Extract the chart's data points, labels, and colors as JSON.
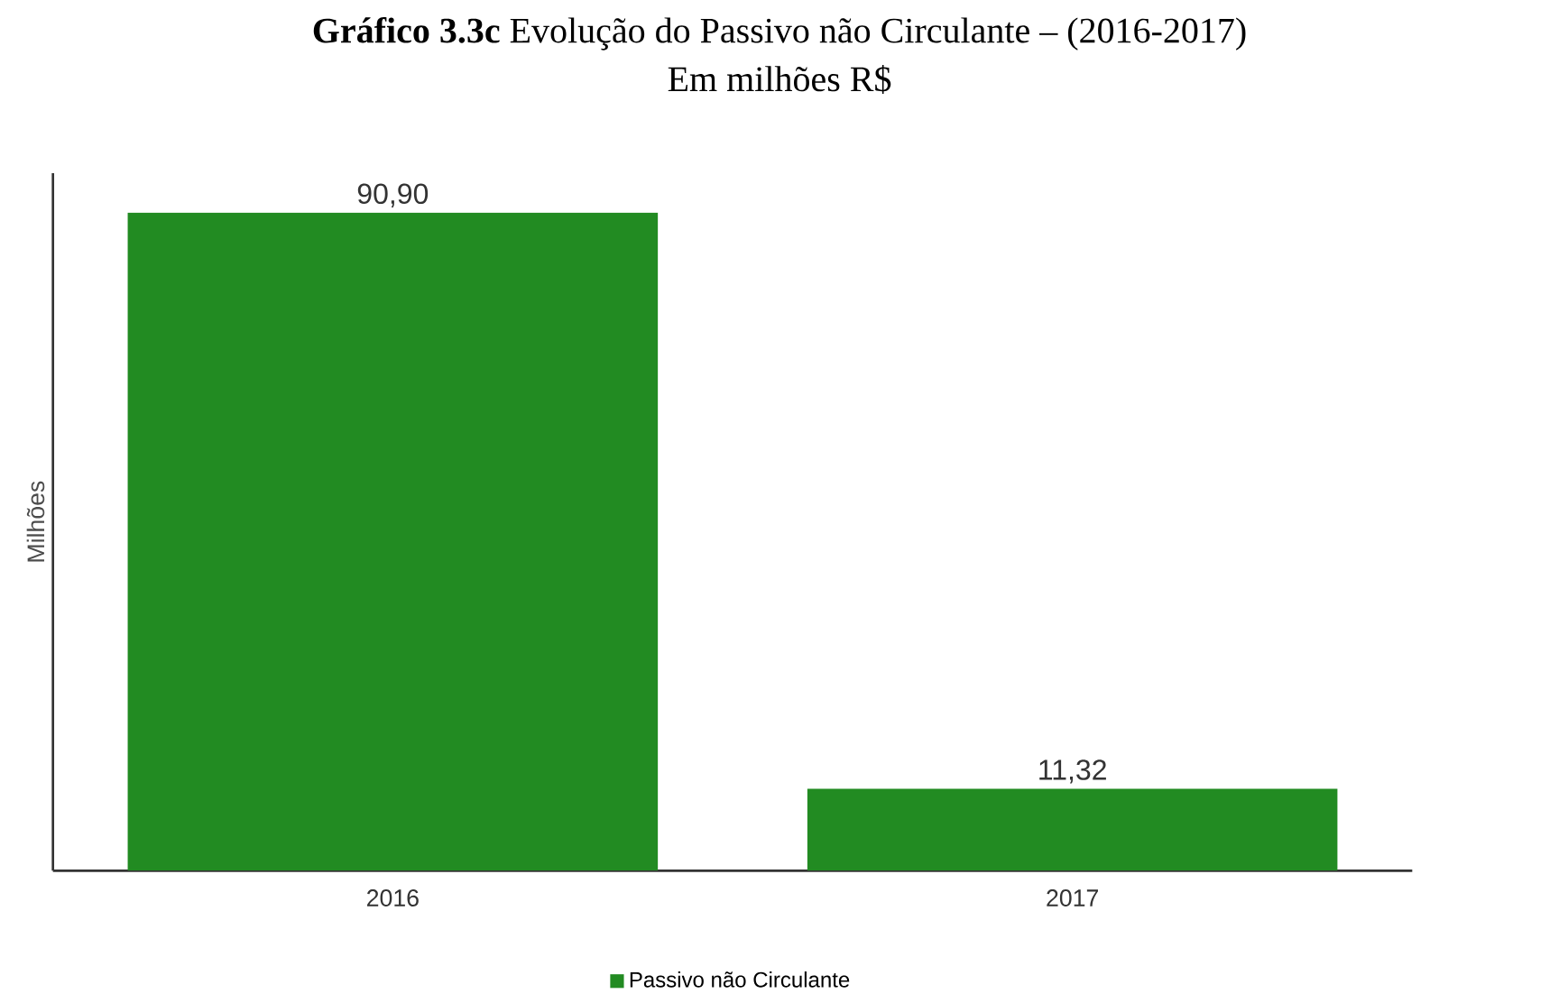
{
  "chart_data": {
    "type": "bar",
    "title": "**Gráfico 3.3c** Evolução do Passivo não Circulante – (2016-2017)",
    "subtitle": "Em milhões R$",
    "ylabel": "Milhões",
    "categories": [
      "2016",
      "2017"
    ],
    "series": [
      {
        "name": "Passivo não Circulante",
        "color": "#228b22",
        "values": [
          90.9,
          11.32
        ],
        "value_labels": [
          "90,90",
          "11,32"
        ]
      }
    ],
    "legend": "bottom",
    "grid": false
  }
}
